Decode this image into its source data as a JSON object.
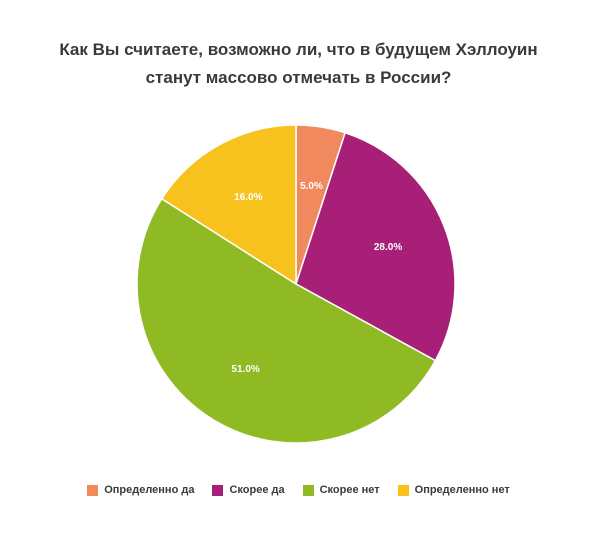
{
  "chart_data": {
    "type": "pie",
    "title_lines": [
      "Как Вы считаете, возможно ли, что в будущем Хэллоуин",
      "станут массово отмечать в России?"
    ],
    "categories": [
      "Определенно да",
      "Скорее да",
      "Скорее нет",
      "Определенно нет"
    ],
    "values": [
      5.0,
      28.0,
      51.0,
      16.0
    ],
    "data_labels": [
      "5.0%",
      "28.0%",
      "51.0%",
      "16.0%"
    ],
    "colors": [
      "#F0895E",
      "#A81F78",
      "#8FBA24",
      "#F7C21E"
    ],
    "legend_position": "bottom"
  }
}
